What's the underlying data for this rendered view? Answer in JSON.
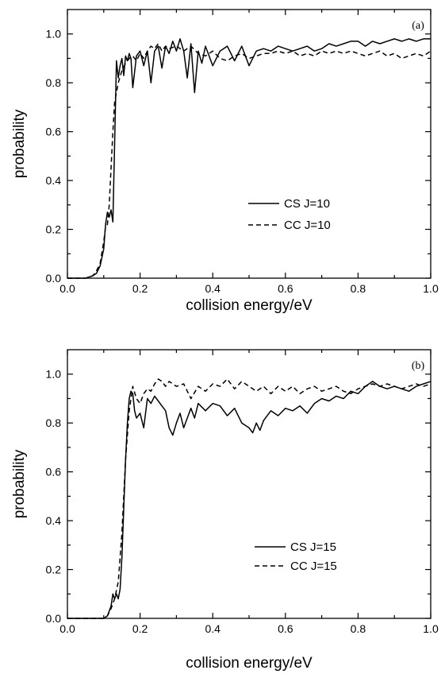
{
  "chart_data": [
    {
      "type": "line",
      "panel_tag": "(a)",
      "xlabel": "collision energy/eV",
      "ylabel": "probability",
      "xlim": [
        0.0,
        1.0
      ],
      "ylim": [
        0.0,
        1.1
      ],
      "xticks": [
        "0.0",
        "0.2",
        "0.4",
        "0.6",
        "0.8",
        "1.0"
      ],
      "yticks": [
        "0.0",
        "0.2",
        "0.4",
        "0.6",
        "0.8",
        "1.0"
      ],
      "legend_position": "center-right",
      "series": [
        {
          "name": "CS J=10",
          "style": "solid",
          "x": [
            0.0,
            0.05,
            0.07,
            0.08,
            0.09,
            0.1,
            0.105,
            0.11,
            0.115,
            0.12,
            0.125,
            0.13,
            0.135,
            0.14,
            0.145,
            0.15,
            0.155,
            0.16,
            0.165,
            0.17,
            0.175,
            0.18,
            0.19,
            0.2,
            0.21,
            0.22,
            0.23,
            0.24,
            0.25,
            0.26,
            0.27,
            0.28,
            0.29,
            0.3,
            0.31,
            0.32,
            0.33,
            0.34,
            0.35,
            0.36,
            0.37,
            0.38,
            0.39,
            0.4,
            0.42,
            0.44,
            0.46,
            0.48,
            0.5,
            0.52,
            0.54,
            0.56,
            0.58,
            0.6,
            0.62,
            0.64,
            0.66,
            0.68,
            0.7,
            0.72,
            0.74,
            0.76,
            0.78,
            0.8,
            0.82,
            0.84,
            0.86,
            0.88,
            0.9,
            0.92,
            0.94,
            0.96,
            0.98,
            1.0
          ],
          "values": [
            0.0,
            0.0,
            0.01,
            0.02,
            0.05,
            0.12,
            0.22,
            0.27,
            0.25,
            0.28,
            0.23,
            0.55,
            0.89,
            0.82,
            0.87,
            0.9,
            0.83,
            0.91,
            0.89,
            0.92,
            0.9,
            0.78,
            0.91,
            0.93,
            0.87,
            0.93,
            0.8,
            0.93,
            0.95,
            0.86,
            0.95,
            0.92,
            0.97,
            0.93,
            0.98,
            0.93,
            0.82,
            0.96,
            0.76,
            0.93,
            0.88,
            0.95,
            0.91,
            0.87,
            0.93,
            0.95,
            0.89,
            0.95,
            0.87,
            0.93,
            0.94,
            0.93,
            0.95,
            0.94,
            0.93,
            0.94,
            0.95,
            0.93,
            0.94,
            0.96,
            0.95,
            0.96,
            0.97,
            0.97,
            0.95,
            0.97,
            0.96,
            0.97,
            0.98,
            0.97,
            0.98,
            0.97,
            0.98,
            0.98
          ]
        },
        {
          "name": "CC J=10",
          "style": "dashed",
          "x": [
            0.0,
            0.05,
            0.07,
            0.08,
            0.09,
            0.1,
            0.105,
            0.11,
            0.115,
            0.12,
            0.125,
            0.13,
            0.135,
            0.14,
            0.15,
            0.16,
            0.17,
            0.18,
            0.19,
            0.2,
            0.21,
            0.22,
            0.23,
            0.24,
            0.25,
            0.26,
            0.27,
            0.28,
            0.3,
            0.32,
            0.34,
            0.36,
            0.38,
            0.4,
            0.42,
            0.44,
            0.46,
            0.48,
            0.5,
            0.52,
            0.54,
            0.56,
            0.58,
            0.6,
            0.62,
            0.64,
            0.66,
            0.68,
            0.7,
            0.72,
            0.74,
            0.76,
            0.78,
            0.8,
            0.82,
            0.84,
            0.86,
            0.88,
            0.9,
            0.92,
            0.94,
            0.96,
            0.98,
            1.0
          ],
          "values": [
            0.0,
            0.0,
            0.01,
            0.03,
            0.06,
            0.15,
            0.21,
            0.22,
            0.3,
            0.45,
            0.6,
            0.72,
            0.76,
            0.8,
            0.85,
            0.88,
            0.9,
            0.91,
            0.89,
            0.92,
            0.9,
            0.93,
            0.95,
            0.94,
            0.96,
            0.93,
            0.95,
            0.94,
            0.95,
            0.93,
            0.95,
            0.92,
            0.91,
            0.93,
            0.9,
            0.89,
            0.91,
            0.92,
            0.9,
            0.91,
            0.92,
            0.92,
            0.93,
            0.92,
            0.93,
            0.91,
            0.92,
            0.91,
            0.93,
            0.92,
            0.93,
            0.92,
            0.93,
            0.92,
            0.91,
            0.92,
            0.93,
            0.91,
            0.92,
            0.9,
            0.91,
            0.92,
            0.91,
            0.93
          ]
        }
      ]
    },
    {
      "type": "line",
      "panel_tag": "(b)",
      "xlabel": "collision energy/eV",
      "ylabel": "probability",
      "xlim": [
        0.0,
        1.0
      ],
      "ylim": [
        0.0,
        1.1
      ],
      "xticks": [
        "0.0",
        "0.2",
        "0.4",
        "0.6",
        "0.8",
        "1.0"
      ],
      "yticks": [
        "0.0",
        "0.2",
        "0.4",
        "0.6",
        "0.8",
        "1.0"
      ],
      "legend_position": "center-right",
      "series": [
        {
          "name": "CS J=15",
          "style": "solid",
          "x": [
            0.0,
            0.1,
            0.11,
            0.115,
            0.12,
            0.125,
            0.13,
            0.135,
            0.14,
            0.145,
            0.15,
            0.155,
            0.16,
            0.165,
            0.17,
            0.175,
            0.18,
            0.185,
            0.19,
            0.2,
            0.21,
            0.22,
            0.23,
            0.24,
            0.25,
            0.26,
            0.27,
            0.28,
            0.29,
            0.3,
            0.31,
            0.32,
            0.33,
            0.34,
            0.35,
            0.36,
            0.38,
            0.4,
            0.42,
            0.44,
            0.46,
            0.48,
            0.5,
            0.51,
            0.52,
            0.53,
            0.54,
            0.56,
            0.58,
            0.6,
            0.62,
            0.64,
            0.66,
            0.68,
            0.7,
            0.72,
            0.74,
            0.76,
            0.78,
            0.8,
            0.82,
            0.84,
            0.86,
            0.88,
            0.9,
            0.92,
            0.94,
            0.96,
            0.98,
            1.0
          ],
          "values": [
            0.0,
            0.0,
            0.01,
            0.03,
            0.05,
            0.1,
            0.08,
            0.1,
            0.08,
            0.12,
            0.25,
            0.45,
            0.65,
            0.8,
            0.9,
            0.93,
            0.92,
            0.85,
            0.82,
            0.84,
            0.78,
            0.9,
            0.88,
            0.91,
            0.89,
            0.87,
            0.85,
            0.78,
            0.75,
            0.8,
            0.84,
            0.78,
            0.82,
            0.86,
            0.82,
            0.88,
            0.85,
            0.88,
            0.87,
            0.83,
            0.86,
            0.8,
            0.78,
            0.76,
            0.8,
            0.77,
            0.81,
            0.85,
            0.83,
            0.86,
            0.85,
            0.87,
            0.84,
            0.88,
            0.9,
            0.89,
            0.91,
            0.9,
            0.93,
            0.92,
            0.95,
            0.97,
            0.95,
            0.94,
            0.95,
            0.94,
            0.93,
            0.95,
            0.96,
            0.97
          ]
        },
        {
          "name": "CC J=15",
          "style": "dashed",
          "x": [
            0.0,
            0.1,
            0.11,
            0.12,
            0.13,
            0.14,
            0.15,
            0.16,
            0.17,
            0.18,
            0.19,
            0.2,
            0.21,
            0.22,
            0.23,
            0.24,
            0.25,
            0.26,
            0.27,
            0.28,
            0.3,
            0.32,
            0.34,
            0.36,
            0.38,
            0.4,
            0.42,
            0.44,
            0.46,
            0.48,
            0.5,
            0.52,
            0.54,
            0.56,
            0.58,
            0.6,
            0.62,
            0.64,
            0.66,
            0.68,
            0.7,
            0.72,
            0.74,
            0.76,
            0.78,
            0.8,
            0.82,
            0.84,
            0.86,
            0.88,
            0.9,
            0.92,
            0.94,
            0.96,
            0.98,
            1.0
          ],
          "values": [
            0.0,
            0.0,
            0.01,
            0.04,
            0.08,
            0.15,
            0.35,
            0.65,
            0.85,
            0.95,
            0.9,
            0.88,
            0.92,
            0.94,
            0.93,
            0.96,
            0.98,
            0.97,
            0.95,
            0.97,
            0.95,
            0.96,
            0.9,
            0.95,
            0.93,
            0.96,
            0.95,
            0.98,
            0.94,
            0.97,
            0.95,
            0.93,
            0.95,
            0.92,
            0.95,
            0.93,
            0.95,
            0.92,
            0.94,
            0.95,
            0.93,
            0.94,
            0.95,
            0.93,
            0.92,
            0.94,
            0.95,
            0.96,
            0.95,
            0.96,
            0.95,
            0.94,
            0.95,
            0.96,
            0.95,
            0.96
          ]
        }
      ]
    }
  ]
}
